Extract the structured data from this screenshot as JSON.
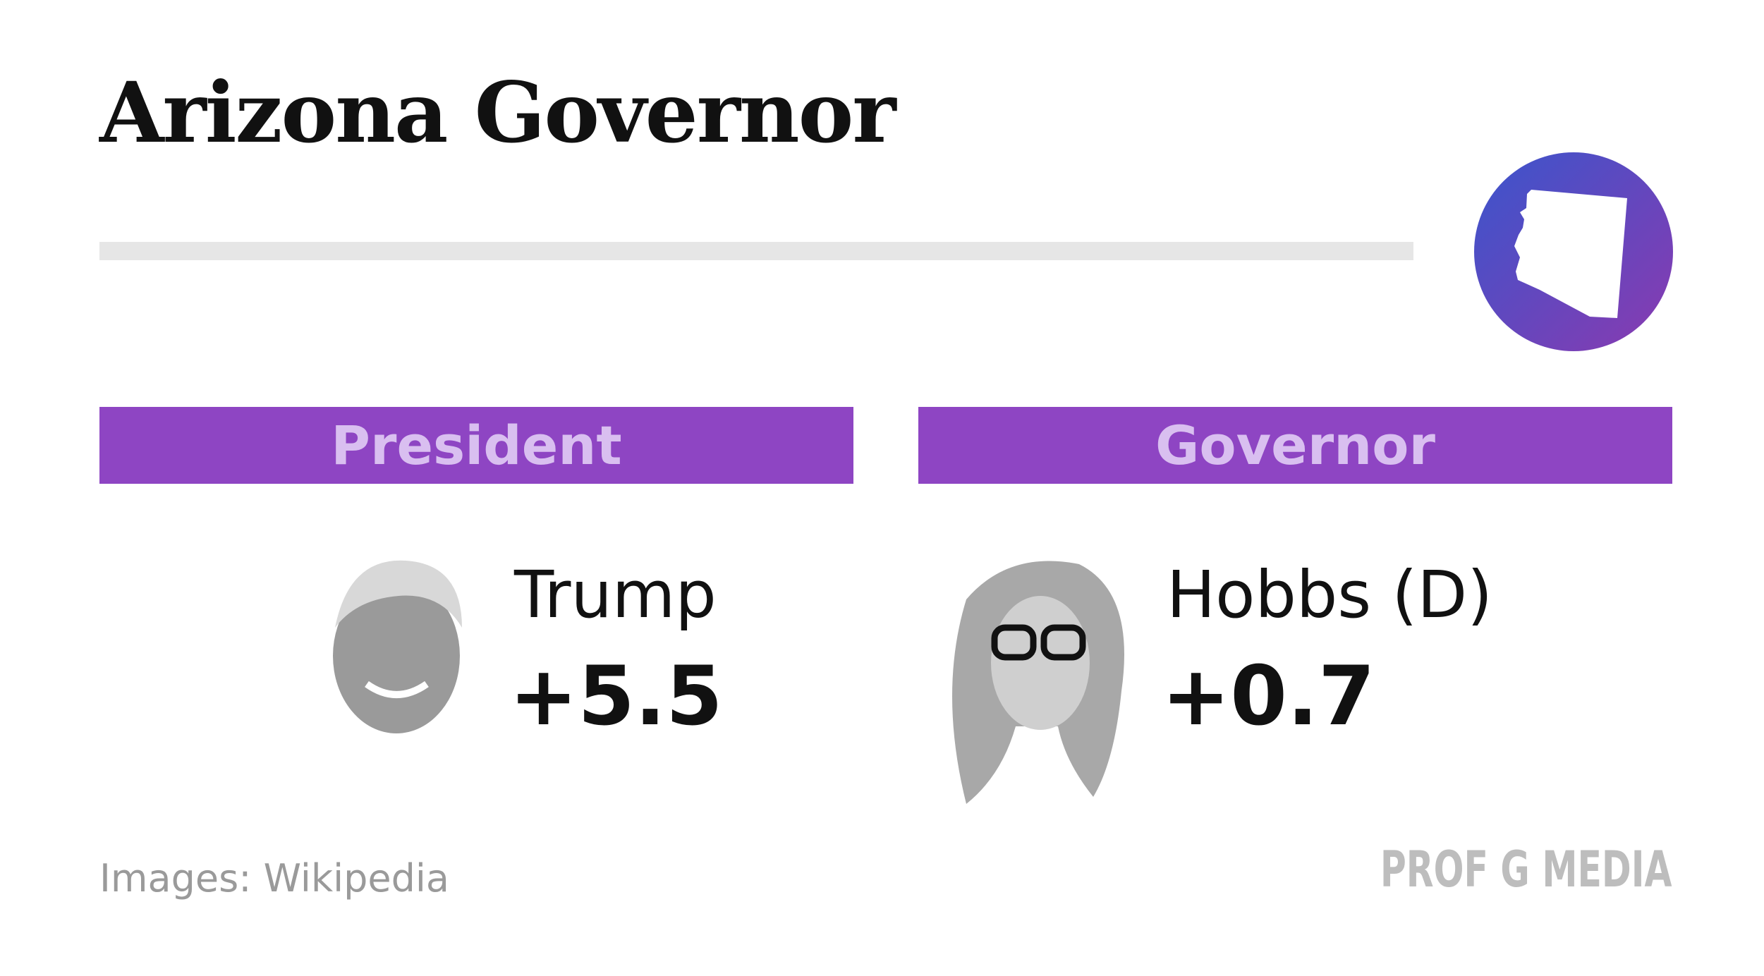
{
  "header": {
    "title": "Arizona Governor"
  },
  "panels": [
    {
      "heading": "President",
      "name": "Trump",
      "margin": "+5.5"
    },
    {
      "heading": "Governor",
      "name": "Hobbs (D)",
      "margin": "+0.7"
    }
  ],
  "footer": {
    "source": "Images: Wikipedia",
    "brand": "PROF G MEDIA"
  }
}
